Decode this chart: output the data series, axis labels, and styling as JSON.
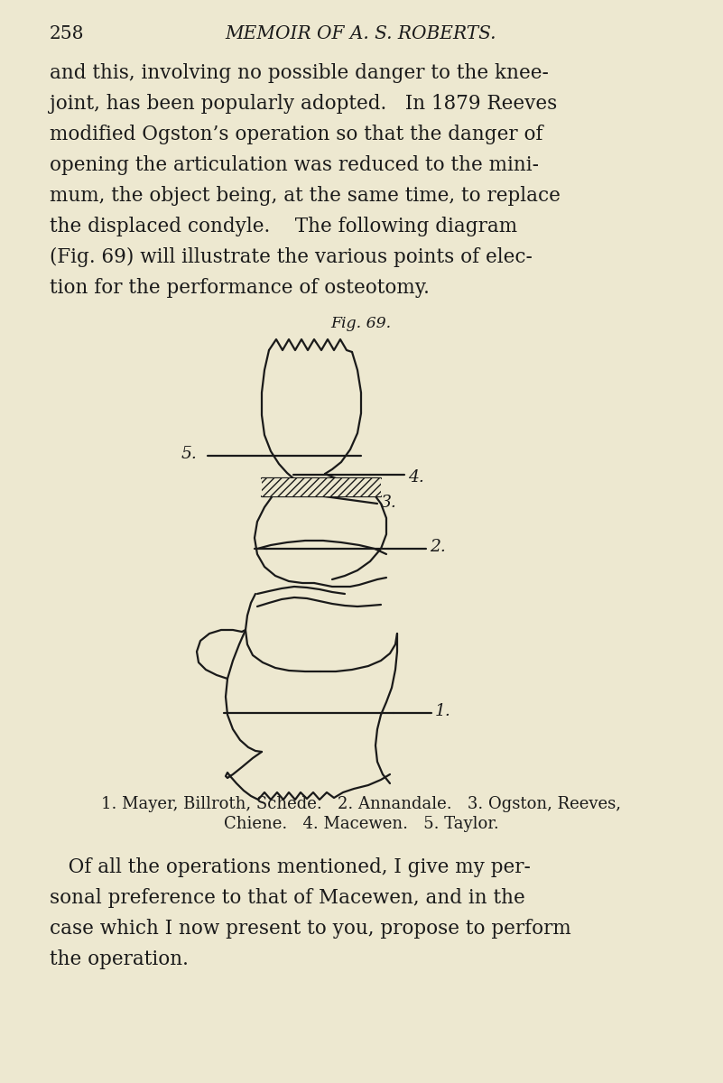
{
  "bg_color": "#ede8d0",
  "line_color": "#1a1a1a",
  "text_color": "#1a1a1a",
  "header_page": "258",
  "header_title": "MEMOIR OF A. S. ROBERTS.",
  "fig_label": "Fig. 69.",
  "caption_line1": "1. Mayer, Billroth, Schede.   2. Annandale.   3. Ogston, Reeves,",
  "caption_line2": "Chiene.   4. Macewen.   5. Taylor.",
  "lw": 1.6,
  "font_size_body": 15.5,
  "font_size_header": 14.5,
  "font_size_fig": 12.5,
  "font_size_caption": 13.0,
  "font_size_label": 13.5
}
